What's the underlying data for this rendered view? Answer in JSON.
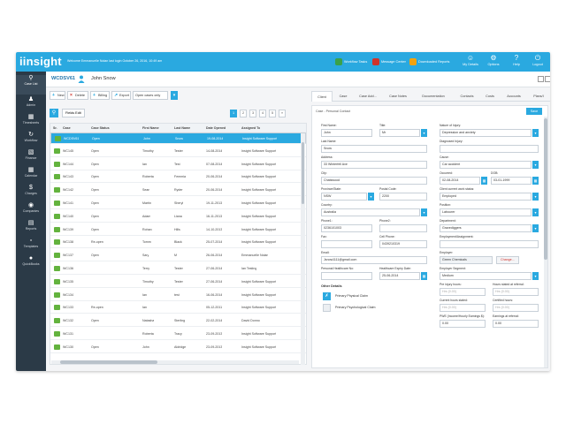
{
  "topbar": {
    "logo": "iinsight",
    "welcome": "Welcome Emmanuelle Nolan   last login October 26, 2016, 10:49 am",
    "workflow_label": "Workflow Tasks",
    "message_label": "Message Center",
    "downloaded_label": "Downloaded Reports",
    "mydetails_label": "My Details",
    "options_label": "Options",
    "help_label": "Help",
    "logout_label": "Logout",
    "colors": {
      "accent": "#2aa9e0",
      "workflow": "#3aa14a",
      "message": "#d0332b",
      "downloaded": "#f2a20d"
    }
  },
  "sidebar": {
    "items": [
      {
        "label": "Case List",
        "icon": "search-icon"
      },
      {
        "label": "Admin",
        "icon": "person-icon"
      },
      {
        "label": "Timesheets",
        "icon": "calendar-icon"
      },
      {
        "label": "Workflow",
        "icon": "refresh-icon"
      },
      {
        "label": "Finance",
        "icon": "money-icon"
      },
      {
        "label": "Calendar",
        "icon": "calendar-icon"
      },
      {
        "label": "Charges",
        "icon": "dollar-icon"
      },
      {
        "label": "Companies",
        "icon": "globe-icon"
      },
      {
        "label": "Reports",
        "icon": "chart-icon"
      },
      {
        "label": "Templates",
        "icon": "template-icon"
      },
      {
        "label": "QuickBooks",
        "icon": "quickbooks-icon"
      }
    ]
  },
  "casehead": {
    "code": "WCDSV61",
    "name": "John Snow"
  },
  "toolbar": {
    "new_label": "New",
    "delete_label": "Delete",
    "billing_label": "Billing",
    "export_label": "Export",
    "filter_value": "Open cases only"
  },
  "list": {
    "fields_button": "Fields Edit",
    "pages": [
      "1",
      "2",
      "3",
      "4",
      "5",
      "»"
    ],
    "headers": [
      "Sr.",
      "Case",
      "Case Status",
      "First Name",
      "Last Name",
      "Date Opened",
      "Assigned To"
    ],
    "rows": [
      {
        "case": "WCDSV61",
        "status": "Open",
        "first": "John",
        "last": "Snow",
        "date": "19-08-2014",
        "assigned": "Insight Software Support"
      },
      {
        "case": "WC145",
        "status": "Open",
        "first": "Timothy",
        "last": "Tester",
        "date": "14-08-2014",
        "assigned": "Insight Software Support"
      },
      {
        "case": "WC144",
        "status": "Open",
        "first": "Ian",
        "last": "Test",
        "date": "07-08-2014",
        "assigned": "Insight Software Support"
      },
      {
        "case": "WC143",
        "status": "Open",
        "first": "Roberta",
        "last": "Femmia",
        "date": "20-06-2014",
        "assigned": "Insight Software Support"
      },
      {
        "case": "WC142",
        "status": "Open",
        "first": "Sean",
        "last": "Ryder",
        "date": "20-06-2014",
        "assigned": "Insight Software Support"
      },
      {
        "case": "WC141",
        "status": "Open",
        "first": "Martin",
        "last": "Sheryl",
        "date": "19-11-2013",
        "assigned": "Insight Software Support"
      },
      {
        "case": "WC140",
        "status": "Open",
        "first": "Adam",
        "last": "Liana",
        "date": "16-11-2013",
        "assigned": "Insight Software Support"
      },
      {
        "case": "WC139",
        "status": "Open",
        "first": "Rohan",
        "last": "Hills",
        "date": "14-10-2013",
        "assigned": "Insight Software Support"
      },
      {
        "case": "WC138",
        "status": "Re-open",
        "first": "Tomm",
        "last": "Black",
        "date": "25-07-2014",
        "assigned": "Insight Software Support"
      },
      {
        "case": "WC137",
        "status": "Open",
        "first": "Sary",
        "last": "M",
        "date": "26-06-2014",
        "assigned": "Emmanuelle Nolan"
      },
      {
        "case": "WC136",
        "status": "",
        "first": "Terry",
        "last": "Tester",
        "date": "27-06-2014",
        "assigned": "Ian Testing"
      },
      {
        "case": "WC135",
        "status": "",
        "first": "Timothy",
        "last": "Tester",
        "date": "27-06-2014",
        "assigned": "Insight Software Support"
      },
      {
        "case": "WC134",
        "status": "",
        "first": "Ian",
        "last": "test",
        "date": "16-06-2014",
        "assigned": "Insight Software Support"
      },
      {
        "case": "WC133",
        "status": "Re-open",
        "first": "Ian",
        "last": "",
        "date": "05-12-2011",
        "assigned": "Insight Software Support"
      },
      {
        "case": "WC132",
        "status": "Open",
        "first": "Natasha",
        "last": "Sterling",
        "date": "22-02-2014",
        "assigned": "David Donno"
      },
      {
        "case": "WC131",
        "status": "",
        "first": "Roberta",
        "last": "Tracy",
        "date": "23-09-2013",
        "assigned": "Insight Software Support"
      },
      {
        "case": "WC130",
        "status": "Open",
        "first": "John",
        "last": "Aldridge",
        "date": "23-09-2013",
        "assigned": "Insight Software Support"
      }
    ]
  },
  "tabs": [
    "Client",
    "Case",
    "Case Add...",
    "Case Notes",
    "Documentation",
    "Contacts",
    "Costs",
    "Accounts",
    "Plans/I"
  ],
  "form": {
    "title": "Case - Personal Contact",
    "save_label": "Save",
    "first_name": {
      "label": "First Name:",
      "value": "John"
    },
    "title_field": {
      "label": "Title:",
      "value": "Mr"
    },
    "last_name": {
      "label": "Last Name:",
      "value": "Snow"
    },
    "address": {
      "label": "Address:",
      "value": "33 Winterfell Ave"
    },
    "city": {
      "label": "City:",
      "value": "Chatswood"
    },
    "province": {
      "label": "Province/State:",
      "value": "NSW"
    },
    "postal": {
      "label": "Postal Code:",
      "value": "2200"
    },
    "country": {
      "label": "Country:",
      "value": "Australia"
    },
    "phone1": {
      "label": "Phone1:",
      "value": "0236101003"
    },
    "phone2": {
      "label": "Phone2:",
      "value": ""
    },
    "fax": {
      "label": "Fax:",
      "value": ""
    },
    "cell": {
      "label": "Cell Phone:",
      "value": "0439210319"
    },
    "email": {
      "label": "Email:",
      "value": "Jsnow1111@gmail.com"
    },
    "medicare": {
      "label": "Personal Healthcare No:",
      "value": ""
    },
    "expiry": {
      "label": "Healthcare Expiry Date:",
      "value": "25-06-2014"
    },
    "nature": {
      "label": "Nature of Injury:",
      "value": "Depression and anxiety"
    },
    "diagnosis": {
      "label": "Diagnosed Injury:",
      "value": ""
    },
    "cause": {
      "label": "Cause:",
      "value": "Car accident"
    },
    "occurred": {
      "label": "Occurred:",
      "value": "02-08-2014"
    },
    "dob": {
      "label": "DOB:",
      "value": "03-01-1999"
    },
    "work_status": {
      "label": "Client current work status:",
      "value": "Employed"
    },
    "position": {
      "label": "Position:",
      "value": "Labourer"
    },
    "department": {
      "label": "Department:",
      "value": "Gravediggers"
    },
    "employment": {
      "label": "Employment/Assignment:",
      "value": ""
    },
    "employer": {
      "label": "Employer:",
      "value": "Green Chemicals",
      "change": "Change..."
    },
    "employer_segment": {
      "label": "Employer Segment:",
      "value": "Medium"
    },
    "pre_injury": {
      "label": "Pre injury hours:",
      "placeholder": "Hrs (0.00)"
    },
    "hours_referral": {
      "label": "Hours stated at referral:",
      "placeholder": "Hrs (0.00)"
    },
    "current_hours": {
      "label": "Current hours stated:",
      "placeholder": "Hrs (0.00)"
    },
    "certified_hours": {
      "label": "Certified hours:",
      "placeholder": "Hrs (0.00)"
    },
    "pwe": {
      "label": "PWE (Income/Hourly Earnings $):",
      "value": "0.00"
    },
    "earnings_referral": {
      "label": "Earnings at referral:",
      "value": "0.00"
    },
    "other_details": "Other Details",
    "claims": [
      "Primary Physical Claim",
      "Primary Psychological Claim"
    ]
  }
}
